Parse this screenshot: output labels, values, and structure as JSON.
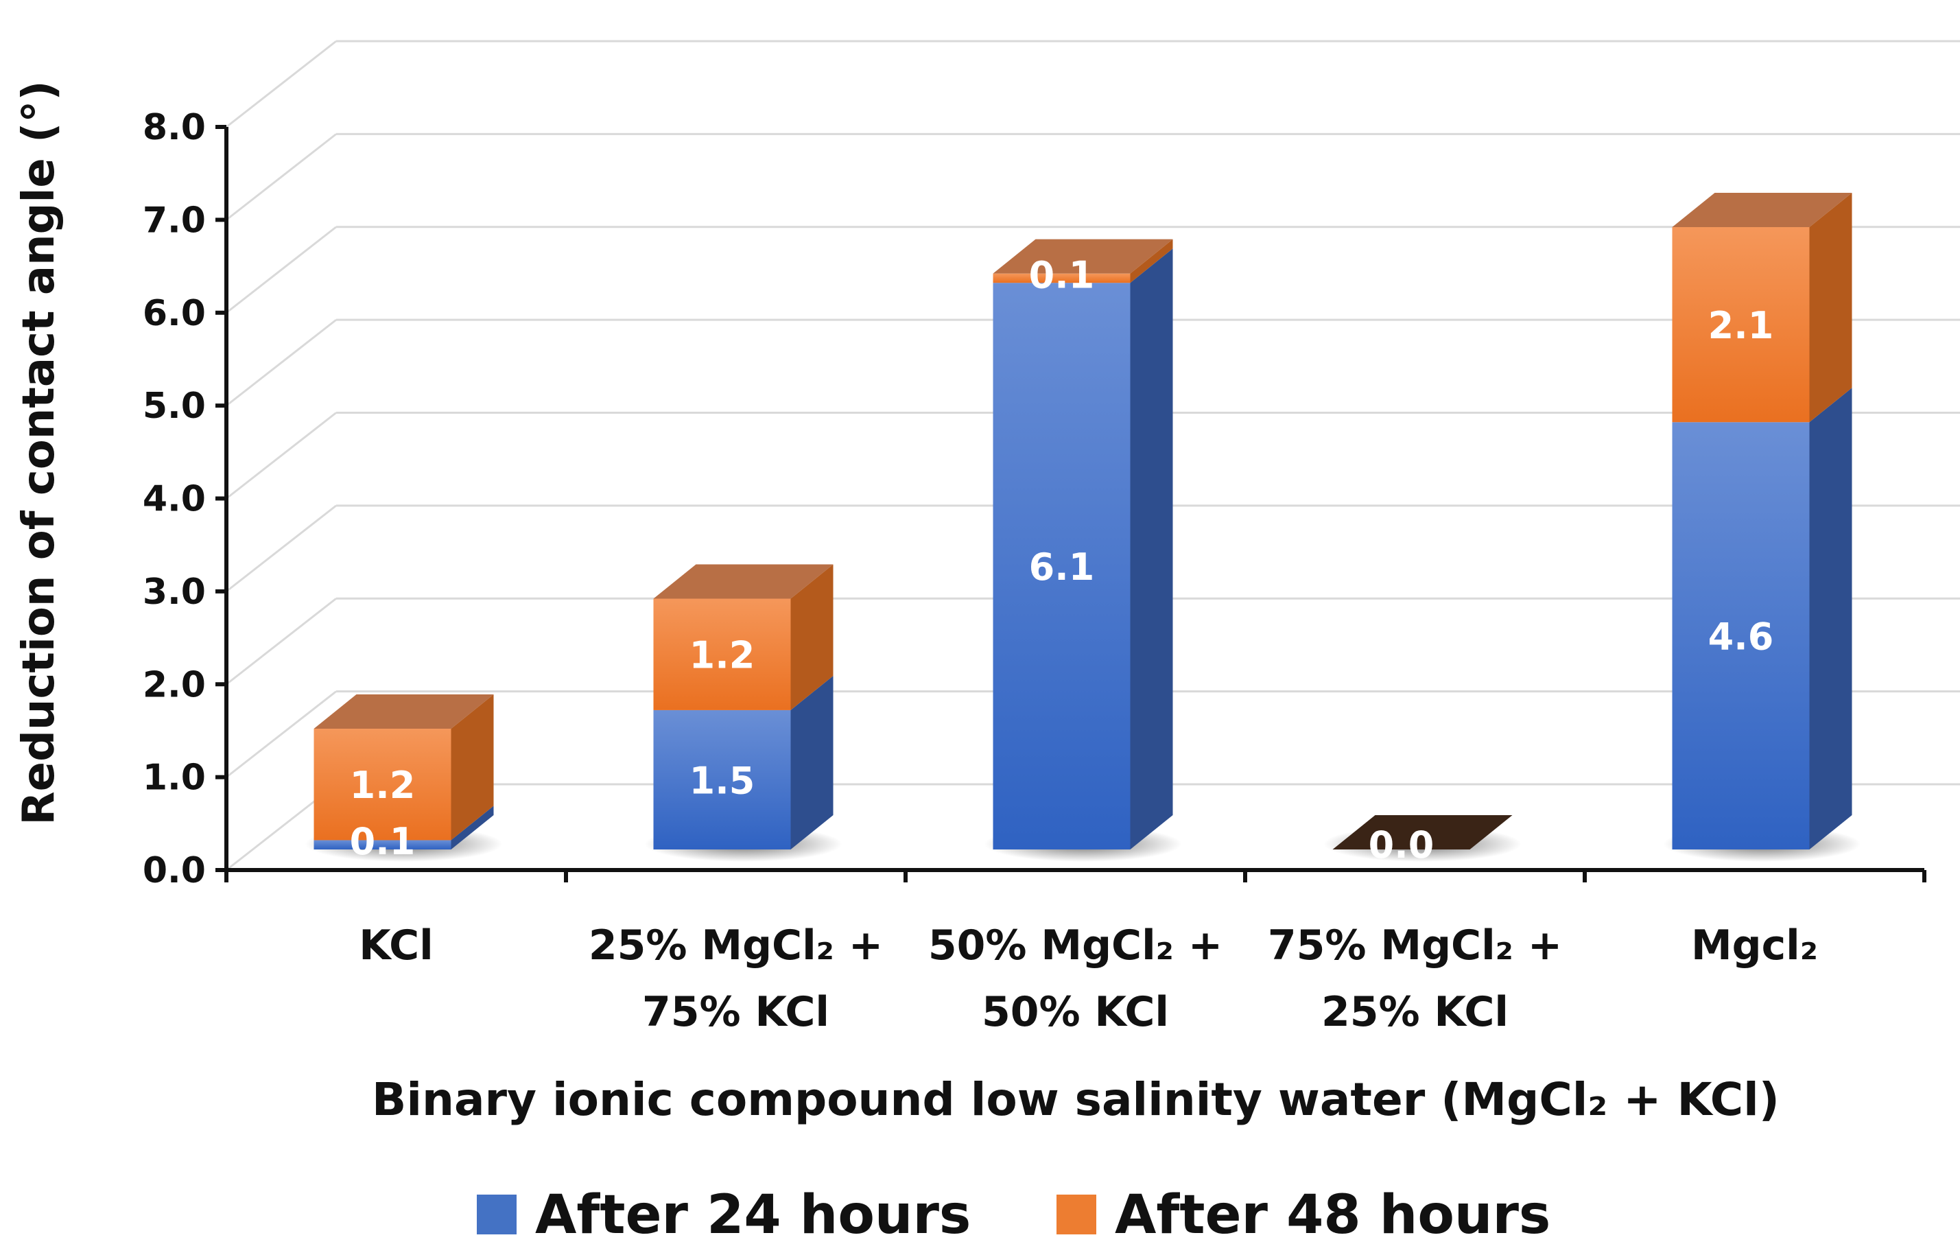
{
  "chart_data": {
    "type": "bar",
    "stacked": true,
    "title": "",
    "xlabel": "Binary ionic compound low salinity water (MgCl₂ + KCl)",
    "ylabel": "Reduction of contact angle (°)",
    "ylim": [
      0,
      8
    ],
    "yticks": [
      "0.0",
      "1.0",
      "2.0",
      "3.0",
      "4.0",
      "5.0",
      "6.0",
      "7.0",
      "8.0"
    ],
    "categories": [
      [
        "KCl"
      ],
      [
        "25% MgCl₂ +",
        "75% KCl"
      ],
      [
        "50% MgCl₂ +",
        "50% KCl"
      ],
      [
        "75% MgCl₂ +",
        "25% KCl"
      ],
      [
        "Mgcl₂"
      ]
    ],
    "series": [
      {
        "name": "After 24 hours",
        "color": "#4472C4",
        "values": [
          0.1,
          1.5,
          6.1,
          0.0,
          4.6
        ],
        "labels": [
          "0.1",
          "1.5",
          "6.1",
          "0.0",
          "4.6"
        ]
      },
      {
        "name": "After 48 hours",
        "color": "#ED7D31",
        "values": [
          1.2,
          1.2,
          0.1,
          0.0,
          2.1
        ],
        "labels": [
          "1.2",
          "1.2",
          "0.1",
          "",
          "2.1"
        ]
      }
    ],
    "legend": "bottom",
    "grid": true
  }
}
